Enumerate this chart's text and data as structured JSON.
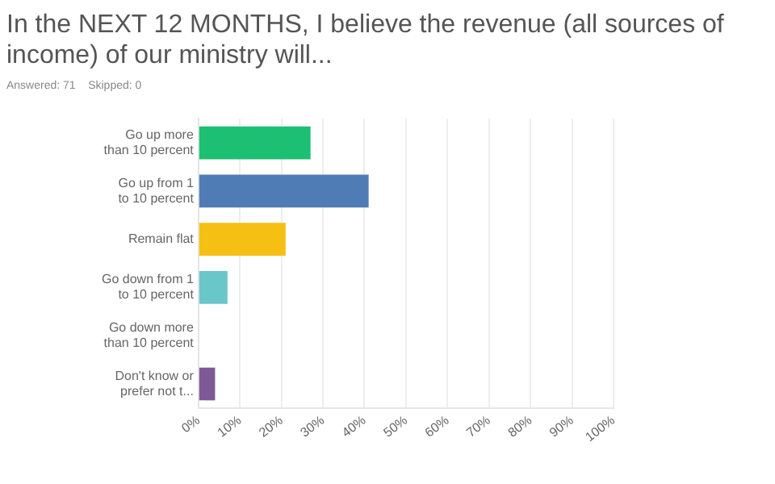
{
  "chart_data": {
    "type": "bar",
    "orientation": "horizontal",
    "title": "In the NEXT 12 MONTHS, I believe the revenue (all sources of income) of our ministry will...",
    "subtitle": "Answered: 71    Skipped: 0",
    "categories": [
      "Go up more than 10 percent",
      "Go up from 1 to 10 percent",
      "Remain flat",
      "Go down from 1 to 10 percent",
      "Go down more than 10 percent",
      "Don't know or prefer not t..."
    ],
    "values": [
      27,
      41,
      21,
      7,
      0,
      4
    ],
    "colors": [
      "#1dbf73",
      "#507cb6",
      "#f6bf14",
      "#6ac7c9",
      "#dc5f5f",
      "#7d5a95"
    ],
    "xlim": [
      0,
      100
    ],
    "xticks": [
      {
        "value": 0,
        "label": "0%"
      },
      {
        "value": 10,
        "label": "10%"
      },
      {
        "value": 20,
        "label": "20%"
      },
      {
        "value": 30,
        "label": "30%"
      },
      {
        "value": 40,
        "label": "40%"
      },
      {
        "value": 50,
        "label": "50%"
      },
      {
        "value": 60,
        "label": "60%"
      },
      {
        "value": 70,
        "label": "70%"
      },
      {
        "value": 80,
        "label": "80%"
      },
      {
        "value": 90,
        "label": "90%"
      },
      {
        "value": 100,
        "label": "100%"
      }
    ],
    "grid": "x"
  }
}
